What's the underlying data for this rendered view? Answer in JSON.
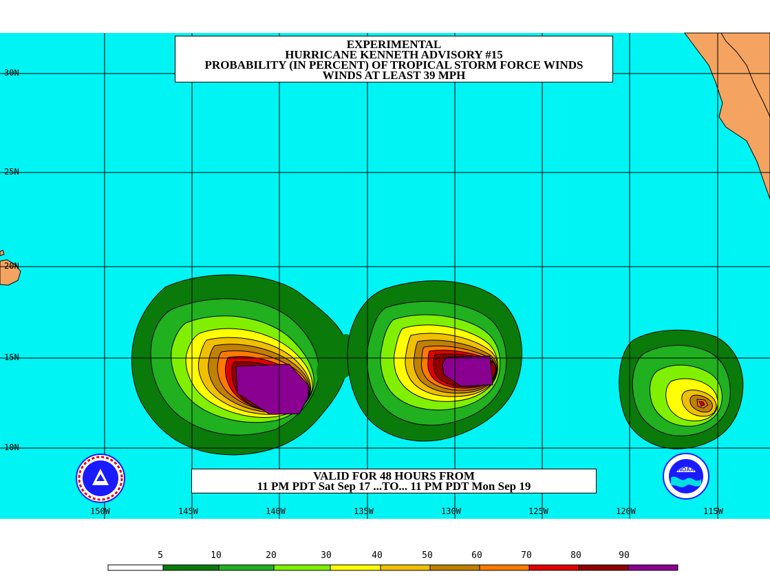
{
  "title": {
    "line1": "EXPERIMENTAL",
    "line2": "HURRICANE KENNETH ADVISORY #15",
    "line3": "PROBABILITY (IN PERCENT) OF TROPICAL STORM FORCE WINDS",
    "line4": "WINDS AT LEAST 39 MPH"
  },
  "valid": {
    "line1": "VALID FOR 48 HOURS FROM",
    "line2": "11 PM PDT Sat Sep 17 ...TO... 11 PM PDT Mon Sep 19"
  },
  "lat_labels": [
    "30N",
    "25N",
    "20N",
    "15N",
    "10N"
  ],
  "lon_labels": [
    "150W",
    "145W",
    "140W",
    "135W",
    "130W",
    "125W",
    "120W",
    "115W"
  ],
  "legend": {
    "numbers": [
      "5",
      "10",
      "20",
      "30",
      "40",
      "50",
      "60",
      "70",
      "80",
      "90"
    ],
    "colors": [
      "#ffffff",
      "#0a7a0a",
      "#20b020",
      "#80f000",
      "#ffff00",
      "#f0c000",
      "#c08000",
      "#ff7a00",
      "#e00000",
      "#900000",
      "#8a0090"
    ]
  },
  "colors": {
    "ocean": "#00f4f4",
    "land": "#f4a460",
    "grid": "#000000"
  },
  "icons": {
    "left_logo": "nws-logo",
    "right_logo": "noaa-logo"
  }
}
